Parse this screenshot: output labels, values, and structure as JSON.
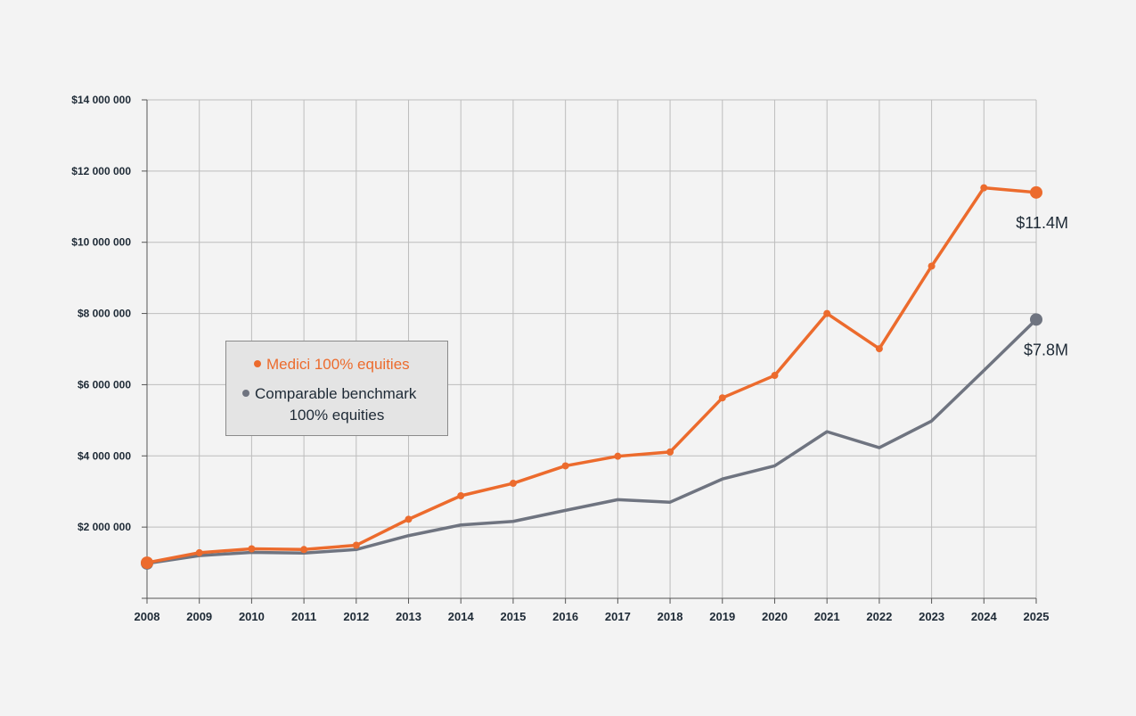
{
  "chart_data": {
    "type": "line",
    "title": "",
    "xlabel": "",
    "ylabel": "",
    "x": [
      "2008",
      "2009",
      "2010",
      "2011",
      "2012",
      "2013",
      "2014",
      "2015",
      "2016",
      "2017",
      "2018",
      "2019",
      "2020",
      "2021",
      "2022",
      "2023",
      "2024",
      "2025"
    ],
    "ylim": [
      0,
      14000000
    ],
    "y_ticks": [
      0,
      2000000,
      4000000,
      6000000,
      8000000,
      10000000,
      12000000,
      14000000
    ],
    "y_tick_labels": [
      "",
      "$2 000 000",
      "$4 000 000",
      "$6 000 000",
      "$8 000 000",
      "$10 000 000",
      "$12 000 000",
      "$14 000 000"
    ],
    "grid": true,
    "legend_position": "center-left",
    "series": [
      {
        "name": "Medici 100% equities",
        "color": "#ec6b2d",
        "markers": true,
        "values": [
          1000000,
          1280000,
          1390000,
          1370000,
          1490000,
          2220000,
          2880000,
          3230000,
          3720000,
          3990000,
          4110000,
          5630000,
          6260000,
          8000000,
          7010000,
          9330000,
          11530000,
          11400000
        ],
        "end_label": "$11.4M"
      },
      {
        "name": "Comparable benchmark 100% equities",
        "legend_lines": [
          "Comparable benchmark",
          "100% equities"
        ],
        "color": "#6f7480",
        "markers": false,
        "values": [
          980000,
          1200000,
          1290000,
          1270000,
          1370000,
          1760000,
          2060000,
          2160000,
          2470000,
          2770000,
          2700000,
          3350000,
          3720000,
          4680000,
          4230000,
          4980000,
          6400000,
          7830000
        ],
        "end_label": "$7.8M"
      }
    ]
  }
}
